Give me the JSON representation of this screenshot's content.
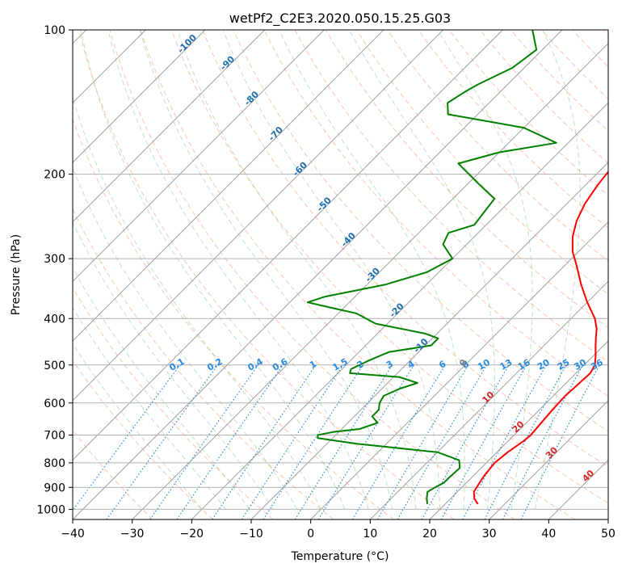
{
  "chart_data": {
    "type": "line",
    "title": "wetPf2_C2E3.2020.050.15.25.G03",
    "xlabel": "Temperature (°C)",
    "ylabel": "Pressure (hPa)",
    "xlim": [
      -40,
      50
    ],
    "ylim": [
      1050,
      100
    ],
    "y_scale": "log",
    "grid": true,
    "x_ticks": [
      -40,
      -30,
      -20,
      -10,
      0,
      10,
      20,
      30,
      40,
      50
    ],
    "y_ticks": [
      100,
      200,
      300,
      400,
      500,
      600,
      700,
      800,
      900,
      1000
    ],
    "isotherm_labels": [
      "-100",
      "-90",
      "-80",
      "-70",
      "-60",
      "-50",
      "-40",
      "-30",
      "-20",
      "-10",
      "0",
      "10",
      "20",
      "30",
      "40"
    ],
    "mixing_ratio_labels": [
      "0.1",
      "0.2",
      "0.4",
      "0.6",
      "1",
      "1.5",
      "2",
      "3",
      "4",
      "6",
      "8",
      "10",
      "13",
      "16",
      "20",
      "25",
      "30",
      "36"
    ],
    "colors": {
      "temperature": "#ff0000",
      "dewpoint": "#008000",
      "isotherm": "#a0a0a0",
      "dry_adiabat": "#ff9070",
      "moist_adiabat": "#70c070",
      "mixing_ratio": "#2a8ae0",
      "cold_label": "#1f6fb0",
      "warm_label": "#d62728",
      "zero_label": "#808080"
    },
    "series": [
      {
        "name": "temperature",
        "pressure": [
          975,
          950,
          920,
          880,
          850,
          800,
          760,
          720,
          700,
          660,
          620,
          580,
          550,
          520,
          500,
          480,
          460,
          440,
          420,
          400,
          370,
          340,
          310,
          290,
          270,
          250,
          230,
          210,
          195,
          180,
          165,
          150,
          140,
          130,
          120,
          110,
          100
        ],
        "temperature": [
          25.5,
          24.0,
          22.8,
          22.2,
          21.8,
          21.4,
          21.8,
          22.6,
          22.8,
          22.5,
          22.2,
          22.0,
          22.2,
          22.4,
          21.8,
          20.5,
          19.0,
          17.5,
          16.0,
          14.0,
          10.0,
          6.0,
          2.0,
          -1.0,
          -3.5,
          -5.5,
          -7.0,
          -8.0,
          -8.5,
          -8.3,
          -8.0,
          -7.6,
          -8.2,
          -9.3,
          -10.6,
          -12.2,
          -14.0
        ]
      },
      {
        "name": "dewpoint",
        "pressure": [
          975,
          950,
          920,
          900,
          880,
          860,
          820,
          790,
          760,
          730,
          710,
          700,
          690,
          680,
          660,
          640,
          620,
          600,
          580,
          560,
          545,
          530,
          520,
          510,
          490,
          470,
          455,
          440,
          430,
          410,
          390,
          380,
          370,
          360,
          340,
          320,
          300,
          280,
          265,
          255,
          240,
          225,
          210,
          190,
          180,
          172,
          160,
          150,
          142,
          135,
          130,
          120,
          110,
          100
        ],
        "temperature": [
          17.0,
          16.0,
          15.0,
          15.5,
          16.2,
          16.2,
          16.4,
          15.0,
          10.0,
          -5.0,
          -12.5,
          -13.0,
          -11.0,
          -7.0,
          -5.0,
          -7.0,
          -7.0,
          -8.0,
          -8.5,
          -7.0,
          -5.0,
          -9.0,
          -18.0,
          -18.5,
          -17.0,
          -15.0,
          -9.0,
          -9.0,
          -12.0,
          -22.0,
          -27.0,
          -32.0,
          -37.0,
          -35.0,
          -27.0,
          -22.0,
          -20.0,
          -24.0,
          -25.0,
          -22.0,
          -22.5,
          -23.0,
          -28.0,
          -35.0,
          -30.0,
          -22.0,
          -30.0,
          -45.0,
          -47.0,
          -46.0,
          -45.0,
          -42.0,
          -41.0,
          -45.0
        ]
      }
    ]
  }
}
